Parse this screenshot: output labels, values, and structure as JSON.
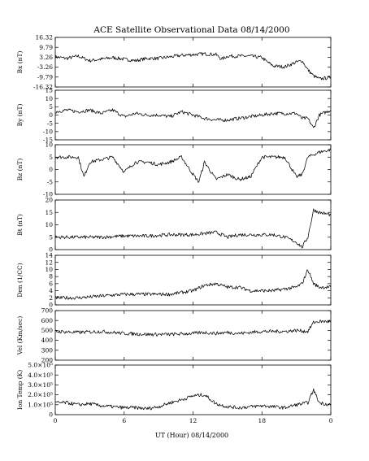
{
  "title": "ACE Satellite Observational Data   08/14/2000",
  "xlabel": "UT (Hour)   08/14/2000",
  "chart_data": {
    "type": "line",
    "title": "ACE Satellite Observational Data   08/14/2000",
    "xlabel": "UT (Hour)   08/14/2000",
    "x_ticks": [
      "0",
      "6",
      "12",
      "18",
      "0"
    ],
    "xlim": [
      0,
      24
    ],
    "panels": [
      {
        "ylabel": "Bx (nT)",
        "ylim": [
          -16.32,
          16.32
        ],
        "y_ticks": [
          {
            "v": 16.32,
            "label": "16.32"
          },
          {
            "v": 9.79,
            "label": "9.79"
          },
          {
            "v": 3.26,
            "label": "3.26"
          },
          {
            "v": -3.26,
            "label": "-3.26"
          },
          {
            "v": -9.79,
            "label": "-9.79"
          },
          {
            "v": -16.32,
            "label": "-16.32"
          }
        ],
        "x": [
          0,
          1,
          2,
          3,
          4,
          5,
          6,
          7,
          8,
          9,
          10,
          11,
          12,
          13,
          14,
          14.5,
          15,
          16,
          17,
          18,
          18.5,
          19,
          20,
          21,
          21.5,
          22,
          22.5,
          23,
          24
        ],
        "y": [
          3.5,
          2.5,
          4,
          1,
          2,
          3,
          2,
          1,
          2.5,
          2.5,
          3.5,
          4.5,
          5,
          5.5,
          5,
          2,
          4,
          4,
          4,
          3,
          0,
          -2.5,
          -3,
          0,
          1,
          -5,
          -9,
          -11,
          -10
        ]
      },
      {
        "ylabel": "By (nT)",
        "ylim": [
          -15,
          15
        ],
        "y_ticks": [
          {
            "v": 15,
            "label": "15"
          },
          {
            "v": 10,
            "label": "10"
          },
          {
            "v": 5,
            "label": "5"
          },
          {
            "v": 0,
            "label": "0"
          },
          {
            "v": -5,
            "label": "-5"
          },
          {
            "v": -10,
            "label": "-10"
          },
          {
            "v": -15,
            "label": "-15"
          }
        ],
        "x": [
          0,
          1,
          2,
          3,
          4,
          5,
          6,
          7,
          8,
          9,
          10,
          11,
          12,
          13,
          14,
          15,
          16,
          17,
          18,
          19,
          20,
          21,
          21.5,
          22,
          22.5,
          23,
          24
        ],
        "y": [
          2,
          3,
          2,
          3,
          1,
          3,
          -1,
          1,
          0,
          0,
          -1,
          2,
          0,
          -2,
          -3,
          -3,
          -2,
          -1,
          0,
          1,
          1,
          1,
          -2,
          -2,
          -8,
          0,
          3
        ]
      },
      {
        "ylabel": "Bz (nT)",
        "ylim": [
          -10,
          10
        ],
        "y_ticks": [
          {
            "v": 10,
            "label": "10"
          },
          {
            "v": 5,
            "label": "5"
          },
          {
            "v": 0,
            "label": "0"
          },
          {
            "v": -5,
            "label": "-5"
          },
          {
            "v": -10,
            "label": "-10"
          }
        ],
        "x": [
          0,
          1,
          2,
          2.5,
          3,
          4,
          5,
          6,
          7,
          8,
          9,
          10,
          11,
          12,
          12.5,
          13,
          14,
          15,
          16,
          17,
          18,
          19,
          20,
          21,
          21.5,
          22,
          23,
          24
        ],
        "y": [
          5,
          5,
          5,
          -3,
          3,
          4,
          5,
          -1,
          3,
          3,
          2,
          3,
          5,
          -2,
          -5,
          3,
          -4,
          -2,
          -4,
          -3,
          5,
          5,
          5,
          -3,
          -2,
          5,
          7,
          8
        ]
      },
      {
        "ylabel": "Bt (nT)",
        "ylim": [
          0,
          20
        ],
        "y_ticks": [
          {
            "v": 20,
            "label": "20"
          },
          {
            "v": 15,
            "label": "15"
          },
          {
            "v": 10,
            "label": "10"
          },
          {
            "v": 5,
            "label": "5"
          },
          {
            "v": 0,
            "label": "0"
          }
        ],
        "x": [
          0,
          2,
          4,
          6,
          8,
          10,
          12,
          13,
          14,
          15,
          16,
          17,
          18,
          19,
          20,
          21,
          21.5,
          22,
          22.5,
          23,
          24
        ],
        "y": [
          5,
          5,
          5,
          5.5,
          5.5,
          6,
          6,
          6.5,
          7,
          5,
          6,
          6,
          6,
          6,
          5,
          3,
          1,
          5,
          16,
          15,
          14
        ]
      },
      {
        "ylabel": "Den (1/CC)",
        "ylim": [
          0,
          14
        ],
        "y_ticks": [
          {
            "v": 14,
            "label": "14"
          },
          {
            "v": 12,
            "label": "12"
          },
          {
            "v": 10,
            "label": "10"
          },
          {
            "v": 8,
            "label": "8"
          },
          {
            "v": 6,
            "label": "6"
          },
          {
            "v": 4,
            "label": "4"
          },
          {
            "v": 2,
            "label": "2"
          },
          {
            "v": 0,
            "label": "0"
          }
        ],
        "x": [
          0,
          2,
          4,
          6,
          8,
          10,
          12,
          13,
          14,
          15,
          16,
          17,
          18,
          19,
          20,
          21,
          21.5,
          22,
          22.5,
          23,
          24
        ],
        "y": [
          2,
          2,
          2.5,
          3,
          3,
          3,
          4,
          5.5,
          6,
          5,
          5,
          4,
          4,
          4,
          4.5,
          5,
          6,
          10,
          6,
          5,
          5
        ]
      },
      {
        "ylabel": "Vel (Km/sec)",
        "ylim": [
          200,
          700
        ],
        "y_ticks": [
          {
            "v": 700,
            "label": "700"
          },
          {
            "v": 600,
            "label": "600"
          },
          {
            "v": 500,
            "label": "500"
          },
          {
            "v": 400,
            "label": "400"
          },
          {
            "v": 300,
            "label": "300"
          },
          {
            "v": 200,
            "label": "200"
          }
        ],
        "x": [
          0,
          2,
          4,
          6,
          8,
          10,
          12,
          13,
          14,
          15,
          16,
          17,
          18,
          19,
          20,
          21,
          22,
          22.5,
          23,
          24
        ],
        "y": [
          490,
          480,
          490,
          470,
          460,
          460,
          470,
          480,
          470,
          480,
          470,
          480,
          490,
          490,
          490,
          500,
          490,
          580,
          590,
          590
        ]
      },
      {
        "ylabel": "Ion Temp (K)",
        "ylim": [
          0,
          500000
        ],
        "y_ticks": [
          {
            "v": 500000,
            "label": "5.0×10⁵"
          },
          {
            "v": 400000,
            "label": "4.0×10⁵"
          },
          {
            "v": 300000,
            "label": "3.0×10⁵"
          },
          {
            "v": 200000,
            "label": "2.0×10⁵"
          },
          {
            "v": 100000,
            "label": "1.0×10⁵"
          },
          {
            "v": 0,
            "label": "0"
          }
        ],
        "x": [
          0,
          1,
          2,
          3,
          4,
          5,
          6,
          7,
          8,
          9,
          10,
          11,
          12,
          13,
          14,
          15,
          16,
          17,
          18,
          19,
          20,
          21,
          22,
          22.5,
          23,
          24
        ],
        "y": [
          120000,
          120000,
          100000,
          110000,
          90000,
          80000,
          70000,
          70000,
          60000,
          80000,
          120000,
          150000,
          190000,
          200000,
          110000,
          80000,
          70000,
          80000,
          90000,
          80000,
          70000,
          100000,
          120000,
          250000,
          120000,
          100000
        ]
      }
    ]
  }
}
